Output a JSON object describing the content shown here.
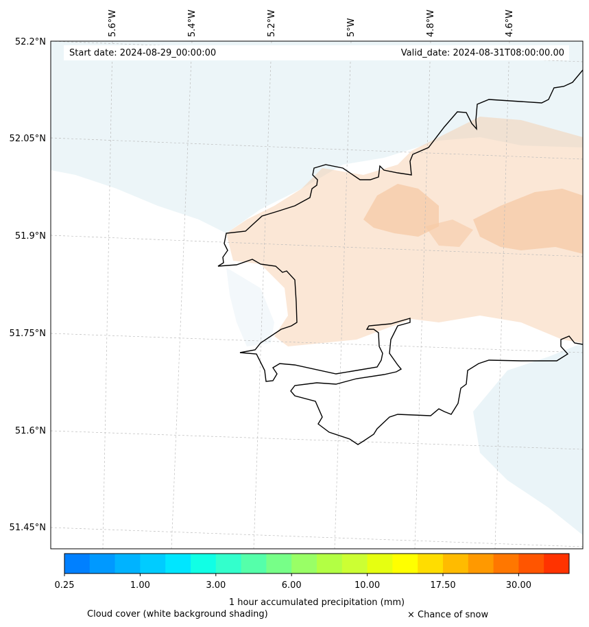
{
  "header": {
    "start_date": "Start date: 2024-08-29_00:00:00",
    "valid_date": "Valid_date: 2024-08-31T08:00:00.00"
  },
  "map": {
    "lon_labels": [
      "5.6°W",
      "5.4°W",
      "5.2°W",
      "5°W",
      "4.8°W",
      "4.6°W"
    ],
    "lat_labels": [
      "52.2°N",
      "52.05°N",
      "51.9°N",
      "51.75°N",
      "51.6°N",
      "51.45°N"
    ],
    "coast_color": "#000000",
    "precip_color": "#f6c9a5",
    "cloud_color": "#dcecf3"
  },
  "colorbar": {
    "colors": [
      "#0080ff",
      "#0099ff",
      "#00b3ff",
      "#00ccff",
      "#00e6ff",
      "#11ffe5",
      "#33ffcc",
      "#55ffaa",
      "#77ff88",
      "#99ff66",
      "#b3ff44",
      "#ccff33",
      "#e6ff11",
      "#ffff00",
      "#ffdd00",
      "#ffbb00",
      "#ff9900",
      "#ff7700",
      "#ff5500",
      "#ff3300"
    ],
    "tick_labels": [
      "0.25",
      "1.00",
      "3.00",
      "6.00",
      "10.00",
      "17.50",
      "30.00"
    ],
    "label": "1 hour accumulated precipitation (mm)"
  },
  "footer": {
    "cloud_note": "Cloud cover (white background shading)",
    "snow_note": "× Chance of snow"
  }
}
